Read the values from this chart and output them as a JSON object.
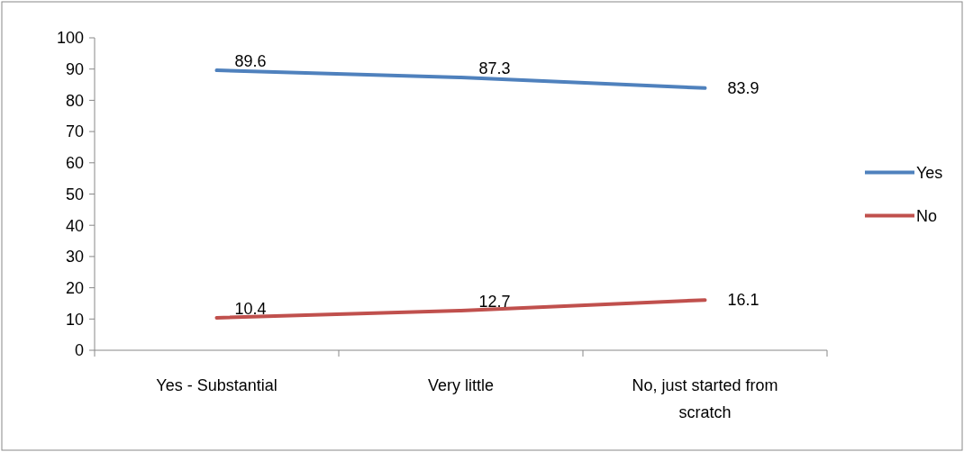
{
  "chart_data": {
    "type": "line",
    "categories": [
      "Yes - Substantial",
      "Very little",
      "No, just started from scratch"
    ],
    "series": [
      {
        "name": "Yes",
        "color": "#4f81bd",
        "values": [
          89.6,
          87.3,
          83.9
        ]
      },
      {
        "name": "No",
        "color": "#c0504d",
        "values": [
          10.4,
          12.7,
          16.1
        ]
      }
    ],
    "ylim": [
      0,
      100
    ],
    "yticks": [
      0,
      10,
      20,
      30,
      40,
      50,
      60,
      70,
      80,
      90,
      100
    ],
    "grid": false,
    "legend": "right",
    "data_labels": true,
    "marker": "none",
    "line_style": "solid"
  }
}
